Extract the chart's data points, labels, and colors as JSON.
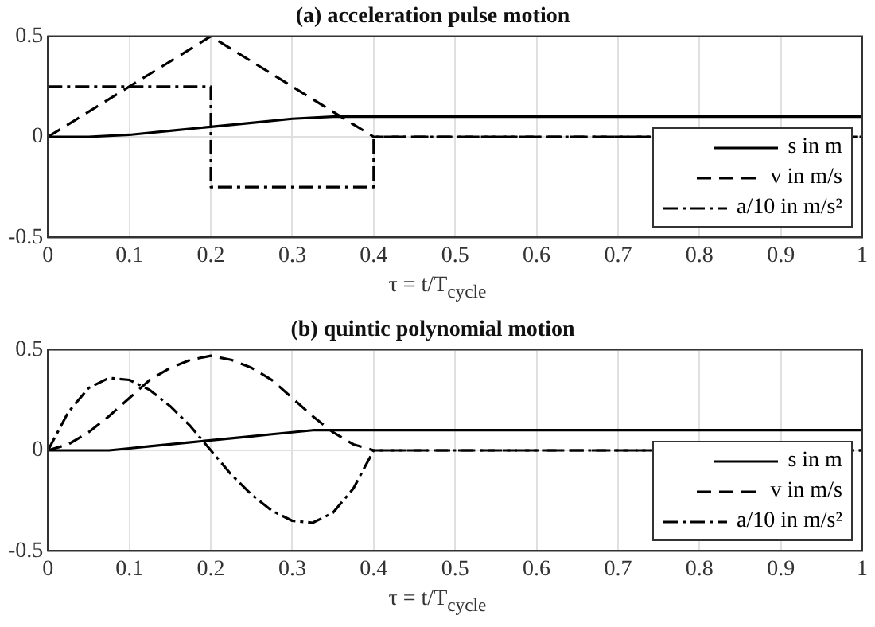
{
  "chart_data": [
    {
      "type": "line",
      "title": "(a) acceleration pulse motion",
      "xlabel": "τ = t/T$_{cycle}$",
      "xlim": [
        0,
        1
      ],
      "xticks": [
        0,
        0.1,
        0.2,
        0.3,
        0.4,
        0.5,
        0.6,
        0.7,
        0.8,
        0.9,
        1
      ],
      "ylim": [
        -0.5,
        0.5
      ],
      "yticks": [
        -0.5,
        0,
        0.5
      ],
      "grid": true,
      "legend": "bottom right",
      "marker": "none",
      "series": [
        {
          "name": "s in m",
          "color": "#000000",
          "line_style": "solid",
          "x": [
            0,
            0.05,
            0.1,
            0.15,
            0.2,
            0.25,
            0.3,
            0.35,
            0.4,
            1
          ],
          "values": [
            0,
            0,
            0.01,
            0.03,
            0.05,
            0.07,
            0.09,
            0.1,
            0.1,
            0.1
          ]
        },
        {
          "name": "v in m/s",
          "color": "#000000",
          "line_style": "dashed",
          "x": [
            0,
            0.2,
            0.4,
            1
          ],
          "values": [
            0,
            0.5,
            0,
            0
          ]
        },
        {
          "name": "a/10 in m/s²",
          "color": "#000000",
          "line_style": "dashdot",
          "x": [
            0,
            0.2,
            0.2,
            0.4,
            0.4,
            1
          ],
          "values": [
            0.25,
            0.25,
            -0.25,
            -0.25,
            0,
            0
          ]
        }
      ]
    },
    {
      "type": "line",
      "title": "(b) quintic polynomial motion",
      "xlabel": "τ = t/T$_{cycle}$",
      "xlim": [
        0,
        1
      ],
      "xticks": [
        0,
        0.1,
        0.2,
        0.3,
        0.4,
        0.5,
        0.6,
        0.7,
        0.8,
        0.9,
        1
      ],
      "ylim": [
        -0.5,
        0.5
      ],
      "yticks": [
        -0.5,
        0,
        0.5
      ],
      "grid": true,
      "legend": "bottom right",
      "marker": "none",
      "series": [
        {
          "name": "s in m",
          "color": "#000000",
          "line_style": "solid",
          "x": [
            0,
            0.025,
            0.05,
            0.075,
            0.1,
            0.125,
            0.15,
            0.175,
            0.2,
            0.225,
            0.25,
            0.275,
            0.3,
            0.325,
            0.35,
            0.375,
            0.4,
            1
          ],
          "values": [
            0,
            0,
            0,
            0,
            0.01,
            0.02,
            0.03,
            0.04,
            0.05,
            0.06,
            0.07,
            0.08,
            0.09,
            0.1,
            0.1,
            0.1,
            0.1,
            0.1
          ]
        },
        {
          "name": "v in m/s",
          "color": "#000000",
          "line_style": "dashed",
          "x": [
            0,
            0.025,
            0.05,
            0.075,
            0.1,
            0.125,
            0.15,
            0.175,
            0.2,
            0.225,
            0.25,
            0.275,
            0.3,
            0.325,
            0.35,
            0.375,
            0.4,
            1
          ],
          "values": [
            0,
            0.03,
            0.09,
            0.17,
            0.26,
            0.35,
            0.41,
            0.45,
            0.47,
            0.45,
            0.41,
            0.35,
            0.26,
            0.17,
            0.09,
            0.03,
            0,
            0
          ]
        },
        {
          "name": "a/10 in m/s²",
          "color": "#000000",
          "line_style": "dashdot",
          "x": [
            0,
            0.025,
            0.05,
            0.075,
            0.1,
            0.125,
            0.15,
            0.175,
            0.2,
            0.225,
            0.25,
            0.275,
            0.3,
            0.325,
            0.35,
            0.375,
            0.4,
            1
          ],
          "values": [
            0,
            0.19,
            0.31,
            0.36,
            0.35,
            0.3,
            0.22,
            0.12,
            0,
            -0.12,
            -0.22,
            -0.3,
            -0.35,
            -0.36,
            -0.31,
            -0.19,
            0,
            0
          ]
        }
      ]
    }
  ]
}
